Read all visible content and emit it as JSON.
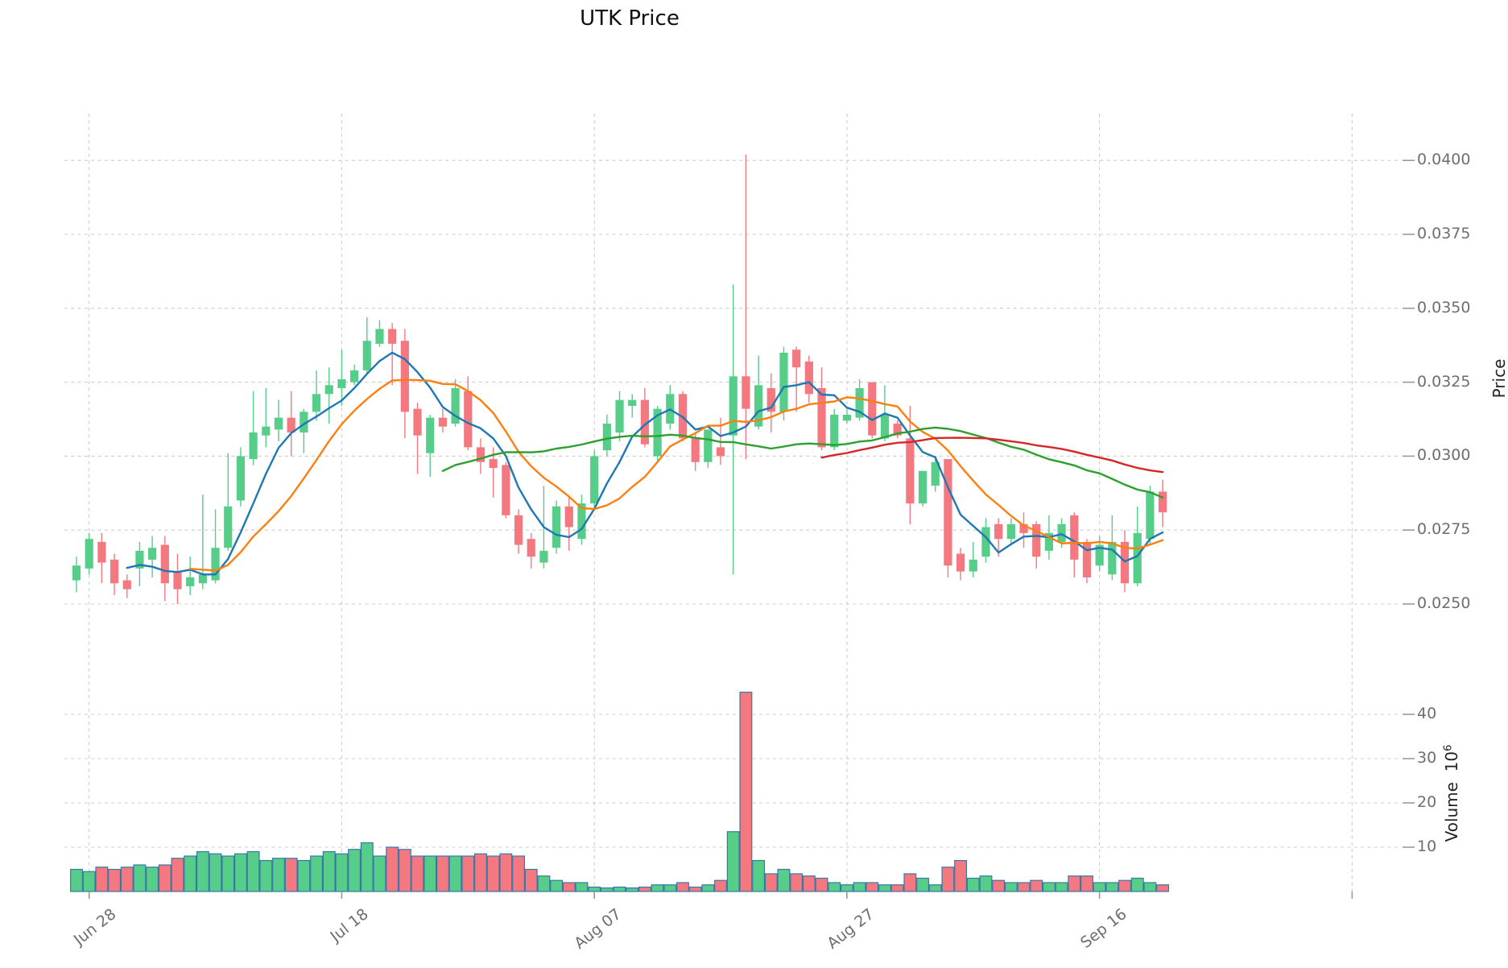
{
  "title": "UTK Price",
  "axes": {
    "price_label": "Price",
    "volume_label": "Volume",
    "volume_unit_base": "10",
    "volume_unit_exp": "6",
    "price_ticks": [
      "0.0400",
      "0.0375",
      "0.0350",
      "0.0325",
      "0.0300",
      "0.0275",
      "0.0250"
    ],
    "price_tick_values": [
      0.04,
      0.0375,
      0.035,
      0.0325,
      0.03,
      0.0275,
      0.025
    ],
    "volume_ticks": [
      "40",
      "30",
      "20",
      "10"
    ],
    "volume_tick_values": [
      40,
      30,
      20,
      10
    ],
    "x_ticks": [
      {
        "label": "Jun 28",
        "index": 1
      },
      {
        "label": "Jul 18",
        "index": 21
      },
      {
        "label": "Aug 07",
        "index": 41
      },
      {
        "label": "Aug 27",
        "index": 61
      },
      {
        "label": "Sep 16",
        "index": 81
      },
      {
        "label": "",
        "index": 101
      }
    ]
  },
  "colors": {
    "up": "#56cd88",
    "down": "#f4787f",
    "volume_bar_edge": "#3878a8",
    "grid": "#cccccc",
    "tick_mark": "#9a9a9a",
    "tick_text": "#6e6e6e",
    "ma5": "#1f77b4",
    "ma10": "#ff7f0e",
    "ma30": "#2ca02c",
    "ma60": "#d62728",
    "background": "#ffffff"
  },
  "chart_data": {
    "type": "candlestick+volume",
    "title": "UTK Price",
    "ylabel": "Price",
    "ylabel2": "Volume 10^6",
    "price_range": [
      0.0244,
      0.0405
    ],
    "volume_range_millions": [
      0,
      48
    ],
    "grid": "dashed",
    "legend_position": "none",
    "moving_averages": [
      {
        "window": 5,
        "color_key": "ma5"
      },
      {
        "window": 10,
        "color_key": "ma10"
      },
      {
        "window": 30,
        "color_key": "ma30"
      },
      {
        "window": 60,
        "color_key": "ma60"
      }
    ],
    "dates": [
      "Jun 27",
      "Jun 28",
      "Jun 29",
      "Jun 30",
      "Jul 01",
      "Jul 02",
      "Jul 03",
      "Jul 04",
      "Jul 05",
      "Jul 06",
      "Jul 07",
      "Jul 08",
      "Jul 09",
      "Jul 10",
      "Jul 11",
      "Jul 12",
      "Jul 13",
      "Jul 14",
      "Jul 15",
      "Jul 16",
      "Jul 17",
      "Jul 18",
      "Jul 19",
      "Jul 20",
      "Jul 21",
      "Jul 22",
      "Jul 23",
      "Jul 24",
      "Jul 25",
      "Jul 26",
      "Jul 27",
      "Jul 28",
      "Jul 29",
      "Jul 30",
      "Jul 31",
      "Aug 01",
      "Aug 02",
      "Aug 03",
      "Aug 04",
      "Aug 05",
      "Aug 06",
      "Aug 07",
      "Aug 08",
      "Aug 09",
      "Aug 10",
      "Aug 11",
      "Aug 12",
      "Aug 13",
      "Aug 14",
      "Aug 15",
      "Aug 16",
      "Aug 17",
      "Aug 18",
      "Aug 19",
      "Aug 20",
      "Aug 21",
      "Aug 22",
      "Aug 23",
      "Aug 24",
      "Aug 25",
      "Aug 26",
      "Aug 27",
      "Aug 28",
      "Aug 29",
      "Aug 30",
      "Aug 31",
      "Sep 01",
      "Sep 02",
      "Sep 03",
      "Sep 04",
      "Sep 05",
      "Sep 06",
      "Sep 07",
      "Sep 08",
      "Sep 09",
      "Sep 10",
      "Sep 11",
      "Sep 12",
      "Sep 13",
      "Sep 14",
      "Sep 15",
      "Sep 16",
      "Sep 17",
      "Sep 18",
      "Sep 19",
      "Sep 20",
      "Sep 21"
    ],
    "open": [
      0.0258,
      0.0262,
      0.0271,
      0.0265,
      0.0258,
      0.0262,
      0.0265,
      0.027,
      0.0261,
      0.0256,
      0.0257,
      0.0258,
      0.0269,
      0.0285,
      0.0299,
      0.0307,
      0.0309,
      0.0313,
      0.0308,
      0.0315,
      0.0321,
      0.0323,
      0.0325,
      0.0329,
      0.0338,
      0.0343,
      0.0339,
      0.0316,
      0.0301,
      0.0313,
      0.0311,
      0.0322,
      0.0303,
      0.0299,
      0.0297,
      0.028,
      0.0272,
      0.0264,
      0.0269,
      0.0283,
      0.0272,
      0.0284,
      0.0302,
      0.0308,
      0.0317,
      0.0319,
      0.03,
      0.0311,
      0.0321,
      0.0306,
      0.0298,
      0.0303,
      0.0307,
      0.0327,
      0.031,
      0.0323,
      0.0315,
      0.0336,
      0.0332,
      0.0323,
      0.0303,
      0.0312,
      0.0313,
      0.0325,
      0.0306,
      0.0311,
      0.0306,
      0.0284,
      0.029,
      0.0299,
      0.0267,
      0.0261,
      0.0266,
      0.0277,
      0.0272,
      0.0277,
      0.0277,
      0.0268,
      0.0271,
      0.028,
      0.0271,
      0.0263,
      0.026,
      0.0271,
      0.0257,
      0.0272,
      0.0288
    ],
    "high": [
      0.0266,
      0.0274,
      0.0274,
      0.0267,
      0.026,
      0.0271,
      0.0273,
      0.0273,
      0.0267,
      0.0266,
      0.0287,
      0.0282,
      0.0301,
      0.0303,
      0.0322,
      0.0323,
      0.0319,
      0.0322,
      0.0316,
      0.0329,
      0.033,
      0.0336,
      0.0331,
      0.0347,
      0.0346,
      0.0345,
      0.0343,
      0.0318,
      0.0314,
      0.0316,
      0.0326,
      0.0327,
      0.0306,
      0.0303,
      0.0298,
      0.0282,
      0.0274,
      0.029,
      0.0285,
      0.0286,
      0.0287,
      0.0302,
      0.0314,
      0.0322,
      0.0321,
      0.0323,
      0.0317,
      0.0324,
      0.0322,
      0.0308,
      0.0309,
      0.0313,
      0.0358,
      0.0402,
      0.0334,
      0.0328,
      0.0337,
      0.0337,
      0.0334,
      0.033,
      0.0316,
      0.0316,
      0.0326,
      0.0325,
      0.0324,
      0.0312,
      0.0317,
      0.0295,
      0.03,
      0.0299,
      0.0269,
      0.0271,
      0.0279,
      0.0279,
      0.0279,
      0.0281,
      0.0278,
      0.028,
      0.0279,
      0.0281,
      0.0272,
      0.0273,
      0.028,
      0.0275,
      0.0283,
      0.029,
      0.0292
    ],
    "low": [
      0.0254,
      0.026,
      0.0257,
      0.0253,
      0.0252,
      0.0256,
      0.0259,
      0.0251,
      0.025,
      0.0253,
      0.0255,
      0.0257,
      0.0268,
      0.0283,
      0.0297,
      0.0303,
      0.0305,
      0.03,
      0.0301,
      0.0312,
      0.0311,
      0.0317,
      0.0324,
      0.0328,
      0.0337,
      0.0324,
      0.0306,
      0.0294,
      0.0293,
      0.0308,
      0.031,
      0.0302,
      0.0294,
      0.0286,
      0.0279,
      0.0267,
      0.0262,
      0.0262,
      0.0267,
      0.0268,
      0.027,
      0.0282,
      0.03,
      0.0305,
      0.0313,
      0.0303,
      0.0298,
      0.0309,
      0.0305,
      0.0295,
      0.0296,
      0.0297,
      0.026,
      0.0299,
      0.0309,
      0.0308,
      0.0312,
      0.0315,
      0.0318,
      0.0302,
      0.0302,
      0.0311,
      0.0312,
      0.0306,
      0.0305,
      0.0306,
      0.0277,
      0.0283,
      0.0288,
      0.0259,
      0.0258,
      0.0259,
      0.0264,
      0.0266,
      0.027,
      0.0269,
      0.0262,
      0.0265,
      0.0269,
      0.0259,
      0.0257,
      0.0261,
      0.0258,
      0.0254,
      0.0256,
      0.027,
      0.0276
    ],
    "close": [
      0.0263,
      0.0272,
      0.0264,
      0.0257,
      0.0255,
      0.0268,
      0.0269,
      0.0257,
      0.0255,
      0.0259,
      0.026,
      0.0269,
      0.0283,
      0.03,
      0.0308,
      0.031,
      0.0313,
      0.0308,
      0.0315,
      0.0321,
      0.0324,
      0.0326,
      0.0329,
      0.0339,
      0.0343,
      0.0338,
      0.0315,
      0.0307,
      0.0313,
      0.031,
      0.0323,
      0.0303,
      0.0298,
      0.0296,
      0.028,
      0.027,
      0.0266,
      0.0268,
      0.0283,
      0.0276,
      0.0284,
      0.03,
      0.0311,
      0.0319,
      0.0319,
      0.0304,
      0.0316,
      0.0321,
      0.0306,
      0.0298,
      0.0309,
      0.03,
      0.0327,
      0.0316,
      0.0324,
      0.0315,
      0.0335,
      0.033,
      0.0321,
      0.0303,
      0.0314,
      0.0314,
      0.0323,
      0.0307,
      0.0314,
      0.0307,
      0.0284,
      0.0295,
      0.0298,
      0.0263,
      0.0261,
      0.0265,
      0.0276,
      0.0272,
      0.0277,
      0.0274,
      0.0266,
      0.0274,
      0.0277,
      0.0265,
      0.0259,
      0.027,
      0.0271,
      0.0257,
      0.0274,
      0.0288,
      0.0281
    ],
    "volume_millions": [
      5,
      4.5,
      5.5,
      5,
      5.5,
      6,
      5.5,
      6,
      7.5,
      8,
      9,
      8.5,
      8,
      8.5,
      9,
      7,
      7.5,
      7.5,
      7,
      8,
      9,
      8.5,
      9.5,
      11,
      8,
      10,
      9.5,
      8,
      8,
      8,
      8,
      8,
      8.5,
      8,
      8.5,
      8,
      5,
      3.5,
      2.5,
      2,
      2,
      1,
      0.8,
      1,
      0.8,
      1,
      1.5,
      1.5,
      2,
      1,
      1.5,
      2.5,
      13.5,
      45,
      7,
      4,
      5,
      4,
      3.5,
      3,
      2,
      1.5,
      2,
      2,
      1.5,
      1.5,
      4,
      3,
      1.5,
      5.5,
      7,
      3,
      3.5,
      2.5,
      2,
      2,
      2.5,
      2,
      2,
      3.5,
      3.5,
      2,
      2,
      2.5,
      3,
      2,
      1.5
    ]
  }
}
